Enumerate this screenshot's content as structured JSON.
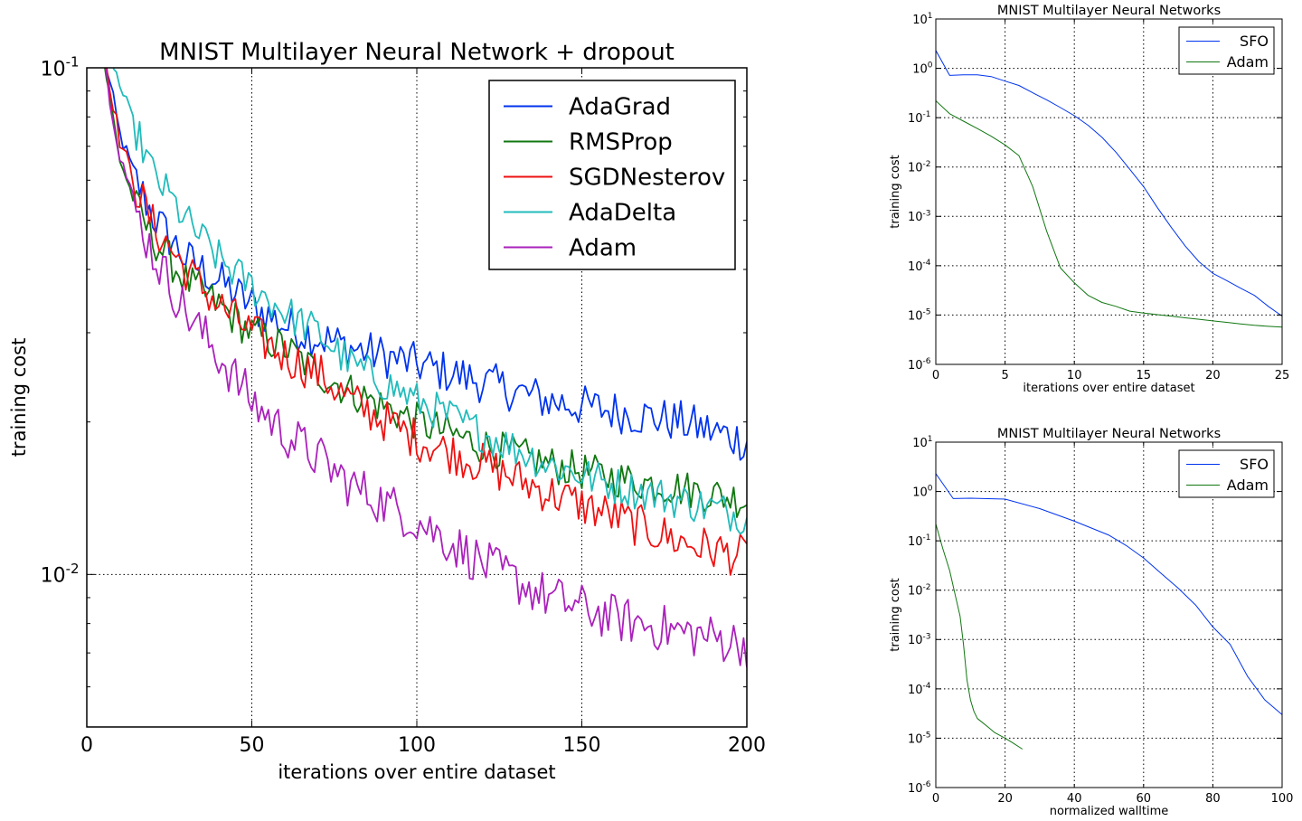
{
  "chart_data": [
    {
      "id": "main",
      "type": "line",
      "title": "MNIST Multilayer Neural Network + dropout",
      "xlabel": "iterations over entire dataset",
      "ylabel": "training cost",
      "xlim": [
        0,
        200
      ],
      "ylim": [
        0.005,
        0.1
      ],
      "yscale": "log",
      "xticks": [
        "0",
        "50",
        "100",
        "150",
        "200"
      ],
      "yticks": [
        {
          "base": "10",
          "exp": "-1",
          "value": 0.1
        },
        {
          "base": "10",
          "exp": "-2",
          "value": 0.01
        }
      ],
      "grid": true,
      "legend": "top-right",
      "series": [
        {
          "name": "AdaGrad",
          "color": "#0033ee",
          "noise": 0.045,
          "points": [
            [
              5,
              0.108
            ],
            [
              10,
              0.074
            ],
            [
              15,
              0.06
            ],
            [
              20,
              0.051
            ],
            [
              30,
              0.042
            ],
            [
              40,
              0.038
            ],
            [
              50,
              0.034
            ],
            [
              60,
              0.031
            ],
            [
              80,
              0.028
            ],
            [
              100,
              0.026
            ],
            [
              120,
              0.024
            ],
            [
              140,
              0.022
            ],
            [
              160,
              0.021
            ],
            [
              180,
              0.02
            ],
            [
              200,
              0.0183
            ]
          ]
        },
        {
          "name": "RMSProp",
          "color": "#117711",
          "noise": 0.04,
          "points": [
            [
              5,
              0.105
            ],
            [
              10,
              0.066
            ],
            [
              15,
              0.053
            ],
            [
              20,
              0.046
            ],
            [
              30,
              0.038
            ],
            [
              40,
              0.034
            ],
            [
              50,
              0.03
            ],
            [
              60,
              0.028
            ],
            [
              70,
              0.025
            ],
            [
              80,
              0.023
            ],
            [
              100,
              0.02
            ],
            [
              120,
              0.018
            ],
            [
              140,
              0.0165
            ],
            [
              160,
              0.0155
            ],
            [
              180,
              0.0148
            ],
            [
              200,
              0.014
            ]
          ]
        },
        {
          "name": "SGDNesterov",
          "color": "#ee1111",
          "noise": 0.045,
          "points": [
            [
              5,
              0.11
            ],
            [
              10,
              0.072
            ],
            [
              15,
              0.058
            ],
            [
              20,
              0.049
            ],
            [
              30,
              0.04
            ],
            [
              40,
              0.034
            ],
            [
              50,
              0.03
            ],
            [
              60,
              0.027
            ],
            [
              70,
              0.025
            ],
            [
              80,
              0.022
            ],
            [
              100,
              0.0185
            ],
            [
              120,
              0.0165
            ],
            [
              140,
              0.0145
            ],
            [
              160,
              0.013
            ],
            [
              180,
              0.0116
            ],
            [
              200,
              0.0108
            ]
          ]
        },
        {
          "name": "AdaDelta",
          "color": "#22bbbb",
          "noise": 0.04,
          "points": [
            [
              8,
              0.102
            ],
            [
              10,
              0.092
            ],
            [
              15,
              0.075
            ],
            [
              20,
              0.062
            ],
            [
              30,
              0.05
            ],
            [
              40,
              0.042
            ],
            [
              50,
              0.037
            ],
            [
              60,
              0.033
            ],
            [
              70,
              0.03
            ],
            [
              80,
              0.026
            ],
            [
              100,
              0.022
            ],
            [
              120,
              0.019
            ],
            [
              140,
              0.0165
            ],
            [
              160,
              0.015
            ],
            [
              180,
              0.014
            ],
            [
              200,
              0.013
            ]
          ]
        },
        {
          "name": "Adam",
          "color": "#aa22bb",
          "noise": 0.05,
          "points": [
            [
              5,
              0.105
            ],
            [
              10,
              0.068
            ],
            [
              15,
              0.052
            ],
            [
              20,
              0.043
            ],
            [
              30,
              0.033
            ],
            [
              40,
              0.027
            ],
            [
              50,
              0.022
            ],
            [
              60,
              0.019
            ],
            [
              70,
              0.017
            ],
            [
              80,
              0.015
            ],
            [
              100,
              0.0128
            ],
            [
              120,
              0.0105
            ],
            [
              140,
              0.009
            ],
            [
              160,
              0.0082
            ],
            [
              180,
              0.0077
            ],
            [
              200,
              0.0073
            ]
          ]
        }
      ]
    },
    {
      "id": "top-right",
      "type": "line",
      "title": "MNIST Multilayer Neural Networks",
      "xlabel": "iterations over entire dataset",
      "ylabel": "training cost",
      "xlim": [
        0,
        25
      ],
      "ylim": [
        1e-06,
        10
      ],
      "yscale": "log",
      "xticks": [
        "0",
        "5",
        "10",
        "15",
        "20",
        "25"
      ],
      "yticks": [
        {
          "base": "10",
          "exp": "1",
          "value": 10
        },
        {
          "base": "10",
          "exp": "0",
          "value": 1
        },
        {
          "base": "10",
          "exp": "-1",
          "value": 0.1
        },
        {
          "base": "10",
          "exp": "-2",
          "value": 0.01
        },
        {
          "base": "10",
          "exp": "-3",
          "value": 0.001
        },
        {
          "base": "10",
          "exp": "-4",
          "value": 0.0001
        },
        {
          "base": "10",
          "exp": "-5",
          "value": 1e-05
        },
        {
          "base": "10",
          "exp": "-6",
          "value": 1e-06
        }
      ],
      "grid": true,
      "legend": "top-right",
      "series": [
        {
          "name": "SFO",
          "color": "#0033ee",
          "points": [
            [
              0,
              2.3
            ],
            [
              1,
              0.72
            ],
            [
              2,
              0.74
            ],
            [
              3,
              0.74
            ],
            [
              4,
              0.68
            ],
            [
              5,
              0.55
            ],
            [
              6,
              0.45
            ],
            [
              7,
              0.32
            ],
            [
              8,
              0.23
            ],
            [
              9,
              0.16
            ],
            [
              10,
              0.11
            ],
            [
              11,
              0.07
            ],
            [
              12,
              0.04
            ],
            [
              13,
              0.02
            ],
            [
              14,
              0.009
            ],
            [
              15,
              0.004
            ],
            [
              16,
              0.0015
            ],
            [
              17,
              0.0006
            ],
            [
              18,
              0.00025
            ],
            [
              19,
              0.00012
            ],
            [
              20,
              7e-05
            ],
            [
              21,
              5e-05
            ],
            [
              22,
              3.5e-05
            ],
            [
              23,
              2.5e-05
            ],
            [
              24,
              1.5e-05
            ],
            [
              25,
              9.5e-06
            ]
          ]
        },
        {
          "name": "Adam",
          "color": "#117711",
          "points": [
            [
              0,
              0.22
            ],
            [
              1,
              0.12
            ],
            [
              2,
              0.085
            ],
            [
              3,
              0.06
            ],
            [
              4,
              0.042
            ],
            [
              5,
              0.028
            ],
            [
              6,
              0.017
            ],
            [
              7,
              0.004
            ],
            [
              8,
              0.0005
            ],
            [
              9,
              9e-05
            ],
            [
              10,
              4.5e-05
            ],
            [
              11,
              2.5e-05
            ],
            [
              12,
              1.8e-05
            ],
            [
              13,
              1.5e-05
            ],
            [
              14,
              1.2e-05
            ],
            [
              15,
              1.1e-05
            ],
            [
              16,
              1.02e-05
            ],
            [
              17,
              9.5e-06
            ],
            [
              18,
              8.8e-06
            ],
            [
              19,
              8.2e-06
            ],
            [
              20,
              7.6e-06
            ],
            [
              21,
              7.1e-06
            ],
            [
              22,
              6.6e-06
            ],
            [
              23,
              6.2e-06
            ],
            [
              24,
              5.9e-06
            ],
            [
              25,
              5.7e-06
            ]
          ]
        }
      ]
    },
    {
      "id": "bottom-right",
      "type": "line",
      "title": "MNIST Multilayer Neural Networks",
      "xlabel": "normalized walltime",
      "ylabel": "training cost",
      "xlim": [
        0,
        100
      ],
      "ylim": [
        1e-06,
        10
      ],
      "yscale": "log",
      "xticks": [
        "0",
        "20",
        "40",
        "60",
        "80",
        "100"
      ],
      "yticks": [
        {
          "base": "10",
          "exp": "1",
          "value": 10
        },
        {
          "base": "10",
          "exp": "0",
          "value": 1
        },
        {
          "base": "10",
          "exp": "-1",
          "value": 0.1
        },
        {
          "base": "10",
          "exp": "-2",
          "value": 0.01
        },
        {
          "base": "10",
          "exp": "-3",
          "value": 0.001
        },
        {
          "base": "10",
          "exp": "-4",
          "value": 0.0001
        },
        {
          "base": "10",
          "exp": "-5",
          "value": 1e-05
        },
        {
          "base": "10",
          "exp": "-6",
          "value": 1e-06
        }
      ],
      "grid": true,
      "legend": "top-right",
      "series": [
        {
          "name": "SFO",
          "color": "#0033ee",
          "points": [
            [
              0,
              2.3
            ],
            [
              5,
              0.72
            ],
            [
              10,
              0.73
            ],
            [
              20,
              0.7
            ],
            [
              30,
              0.45
            ],
            [
              40,
              0.25
            ],
            [
              50,
              0.13
            ],
            [
              55,
              0.08
            ],
            [
              60,
              0.045
            ],
            [
              65,
              0.022
            ],
            [
              70,
              0.011
            ],
            [
              75,
              0.005
            ],
            [
              80,
              0.0018
            ],
            [
              85,
              0.0008
            ],
            [
              90,
              0.00018
            ],
            [
              95,
              6e-05
            ],
            [
              100,
              3e-05
            ]
          ]
        },
        {
          "name": "Adam",
          "color": "#117711",
          "points": [
            [
              0,
              0.22
            ],
            [
              2,
              0.07
            ],
            [
              4,
              0.025
            ],
            [
              6,
              0.006
            ],
            [
              7,
              0.003
            ],
            [
              8,
              0.0008
            ],
            [
              9,
              0.00015
            ],
            [
              10,
              6e-05
            ],
            [
              11,
              3.5e-05
            ],
            [
              12,
              2.5e-05
            ],
            [
              13,
              2.2e-05
            ],
            [
              15,
              1.7e-05
            ],
            [
              17,
              1.3e-05
            ],
            [
              20,
              1e-05
            ],
            [
              22,
              8.2e-06
            ],
            [
              25,
              6e-06
            ]
          ]
        }
      ]
    }
  ]
}
